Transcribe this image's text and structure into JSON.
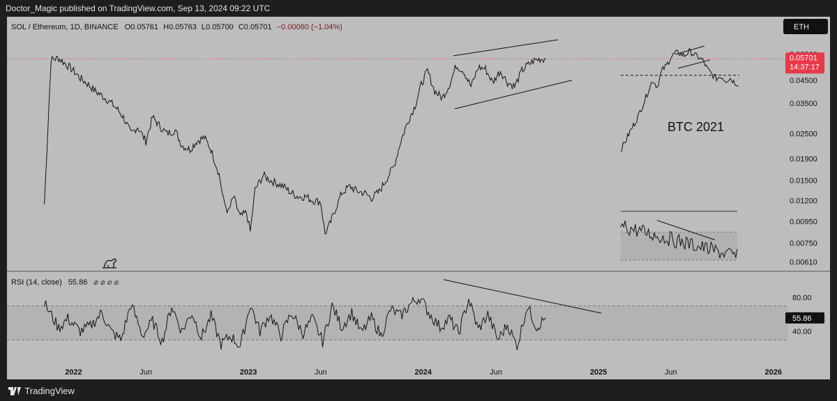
{
  "header": {
    "publisher_line": "Doctor_Magic published on TradingView.com, Sep 13, 2024 09:22 UTC"
  },
  "footer": {
    "brand": "TradingView"
  },
  "colors": {
    "frame_bg": "#bdbdbd",
    "line": "#111111",
    "price_badge": "#e8394a",
    "rsi_badge": "#111111",
    "dotted_price": "#d9534f"
  },
  "legend": {
    "symbol": "SOL / Ethereum, 1D, BINANCE",
    "open_label": "O",
    "open": "0.05761",
    "high_label": "H",
    "high": "0.05763",
    "low_label": "L",
    "low": "0.05700",
    "close_label": "C",
    "close": "0.05701",
    "change": "−0.00060 (−1.04%)"
  },
  "currency_button": {
    "label": "ETH"
  },
  "price_badge": {
    "value": "0.05701",
    "countdown": "14:37:17"
  },
  "rsi": {
    "label": "RSI (14, close)",
    "value": "55.86",
    "icons": "⌀ ⌀ ⌀ ⌀"
  },
  "annotation": {
    "inset_label": "BTC 2021"
  },
  "chart_data": [
    {
      "type": "line",
      "title": "SOL / Ethereum, 1D, BINANCE",
      "scale": "log",
      "y_tick_labels": [
        "0.06000",
        "0.04500",
        "0.03500",
        "0.02500",
        "0.01900",
        "0.01500",
        "0.01200",
        "0.00950",
        "0.00750",
        "0.00610"
      ],
      "x_tick_labels": [
        "2022",
        "Jun",
        "2023",
        "Jun",
        "2024",
        "Jun",
        "2025",
        "Jun",
        "2026"
      ],
      "x_range": [
        "2021-08-15",
        "2026-02-01"
      ],
      "y_range": [
        0.0058,
        0.072
      ],
      "series": [
        {
          "x": [
            "2021-11-01",
            "2021-11-15",
            "2021-12-01",
            "2021-12-15",
            "2022-01-01",
            "2022-01-15",
            "2022-02-01",
            "2022-02-15",
            "2022-03-01",
            "2022-03-15",
            "2022-04-01",
            "2022-04-15",
            "2022-05-01",
            "2022-05-15",
            "2022-06-01",
            "2022-06-15",
            "2022-07-01",
            "2022-07-15",
            "2022-08-01",
            "2022-08-15",
            "2022-09-01",
            "2022-09-15",
            "2022-10-01",
            "2022-10-15",
            "2022-11-01",
            "2022-11-10",
            "2022-11-20",
            "2022-12-01",
            "2022-12-15",
            "2022-12-28",
            "2023-01-05",
            "2023-01-15",
            "2023-02-01",
            "2023-02-15",
            "2023-03-01",
            "2023-03-15",
            "2023-04-01",
            "2023-04-15",
            "2023-05-01",
            "2023-05-15",
            "2023-06-01",
            "2023-06-10",
            "2023-06-20",
            "2023-07-01",
            "2023-07-15",
            "2023-08-01",
            "2023-08-15",
            "2023-09-01",
            "2023-09-15",
            "2023-10-01",
            "2023-10-15",
            "2023-11-01",
            "2023-11-15",
            "2023-12-01",
            "2023-12-15",
            "2023-12-28",
            "2024-01-10",
            "2024-01-25",
            "2024-02-10",
            "2024-02-25",
            "2024-03-10",
            "2024-03-25",
            "2024-04-10",
            "2024-04-25",
            "2024-05-10",
            "2024-05-25",
            "2024-06-10",
            "2024-06-25",
            "2024-07-10",
            "2024-07-25",
            "2024-08-05",
            "2024-08-20",
            "2024-09-01",
            "2024-09-13"
          ],
          "y": [
            0.0115,
            0.0565,
            0.0575,
            0.054,
            0.05,
            0.046,
            0.043,
            0.04,
            0.038,
            0.036,
            0.033,
            0.03,
            0.025,
            0.027,
            0.023,
            0.03,
            0.027,
            0.025,
            0.026,
            0.022,
            0.021,
            0.023,
            0.024,
            0.021,
            0.016,
            0.012,
            0.0105,
            0.0125,
            0.01,
            0.0105,
            0.0085,
            0.0135,
            0.0158,
            0.015,
            0.0145,
            0.014,
            0.013,
            0.0125,
            0.0125,
            0.012,
            0.0118,
            0.0083,
            0.0092,
            0.0108,
            0.013,
            0.014,
            0.0133,
            0.013,
            0.0123,
            0.0132,
            0.015,
            0.0175,
            0.023,
            0.029,
            0.034,
            0.043,
            0.05,
            0.04,
            0.037,
            0.043,
            0.053,
            0.05,
            0.042,
            0.052,
            0.051,
            0.044,
            0.05,
            0.044,
            0.042,
            0.05,
            0.053,
            0.056,
            0.057,
            0.05701
          ]
        }
      ]
    },
    {
      "type": "line",
      "title": "BTC 2021",
      "scale": "log",
      "series": [
        {
          "x": [
            0,
            1,
            2,
            3,
            4,
            5,
            6,
            7,
            8,
            9,
            10,
            11,
            12,
            13,
            14,
            15,
            16,
            17,
            18,
            19,
            20,
            21,
            22,
            23,
            24,
            25,
            26
          ],
          "y": [
            0.021,
            0.023,
            0.0255,
            0.028,
            0.031,
            0.035,
            0.04,
            0.045,
            0.042,
            0.05,
            0.053,
            0.058,
            0.061,
            0.0605,
            0.059,
            0.062,
            0.06,
            0.058,
            0.056,
            0.051,
            0.048,
            0.046,
            0.047,
            0.045,
            0.046,
            0.044,
            0.043
          ]
        }
      ],
      "ref_line": 0.046
    },
    {
      "type": "line",
      "title": "",
      "scale": "linear",
      "y_range": [
        0,
        100
      ],
      "y_tick_labels": [
        "80.00",
        "60.00",
        "40.00"
      ],
      "bands": [
        70,
        30
      ],
      "current_value": 55.86,
      "series": [
        {
          "name": "RSI (14, close)",
          "x": [
            "2021-11-01",
            "2021-12-01",
            "2021-12-20",
            "2022-01-15",
            "2022-02-05",
            "2022-03-01",
            "2022-03-20",
            "2022-04-10",
            "2022-05-01",
            "2022-05-25",
            "2022-06-15",
            "2022-07-05",
            "2022-07-25",
            "2022-08-15",
            "2022-09-05",
            "2022-09-25",
            "2022-10-15",
            "2022-11-05",
            "2022-11-25",
            "2022-12-15",
            "2023-01-05",
            "2023-01-25",
            "2023-02-15",
            "2023-03-10",
            "2023-04-01",
            "2023-04-25",
            "2023-05-15",
            "2023-06-05",
            "2023-06-25",
            "2023-07-15",
            "2023-08-05",
            "2023-08-25",
            "2023-09-15",
            "2023-10-05",
            "2023-10-25",
            "2023-11-15",
            "2023-12-05",
            "2023-12-25",
            "2024-01-15",
            "2024-02-05",
            "2024-02-25",
            "2024-03-15",
            "2024-04-05",
            "2024-04-25",
            "2024-05-15",
            "2024-06-05",
            "2024-06-25",
            "2024-07-15",
            "2024-08-05",
            "2024-08-25",
            "2024-09-13"
          ],
          "y": [
            73,
            44,
            55,
            40,
            46,
            62,
            40,
            30,
            72,
            35,
            52,
            28,
            70,
            40,
            62,
            33,
            58,
            25,
            35,
            22,
            72,
            40,
            60,
            35,
            62,
            38,
            55,
            28,
            70,
            45,
            62,
            38,
            56,
            35,
            66,
            58,
            72,
            80,
            60,
            45,
            55,
            38,
            78,
            42,
            60,
            30,
            48,
            22,
            70,
            45,
            55.86
          ]
        }
      ]
    }
  ]
}
